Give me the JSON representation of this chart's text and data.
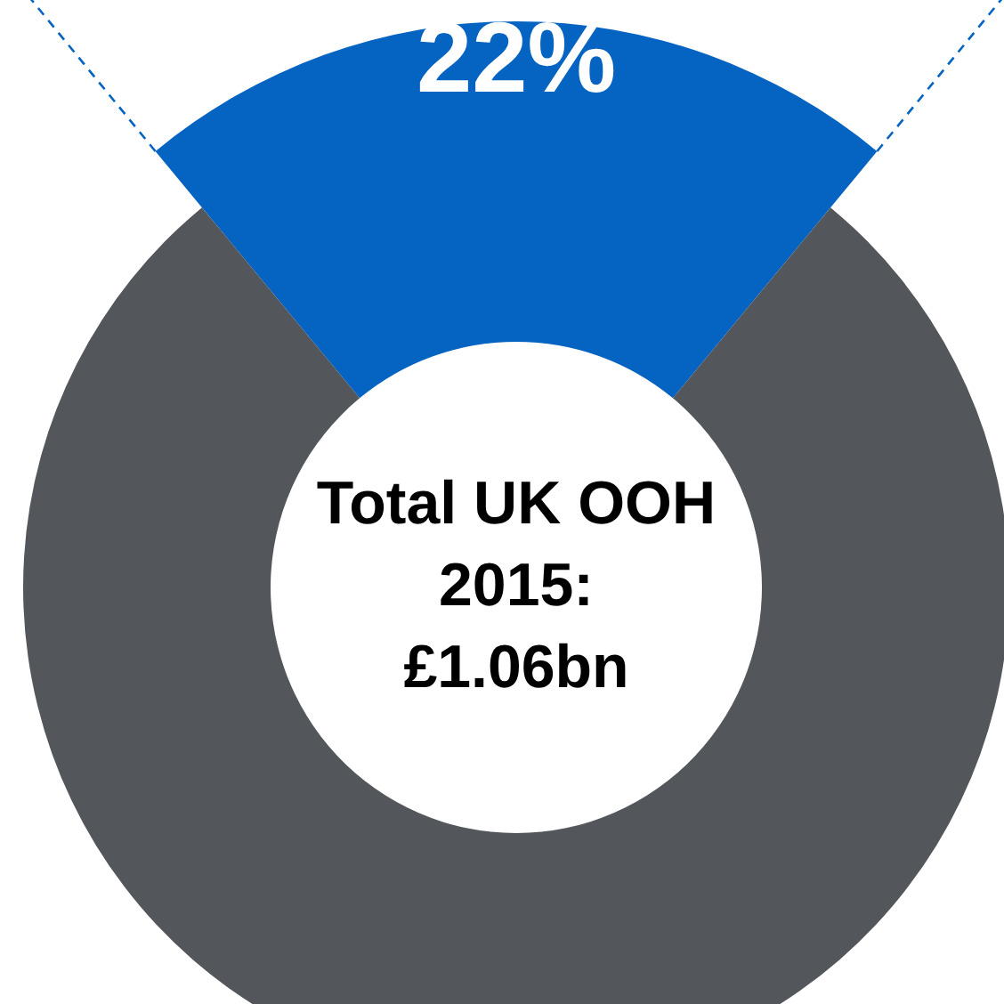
{
  "chart_data": {
    "type": "donut",
    "categories": [
      null,
      null
    ],
    "values": [
      22,
      78
    ],
    "colors": [
      "#0563c1",
      "#53575c"
    ],
    "value_labels": [
      "22%",
      null
    ],
    "annotations": [
      "Total UK OOH\n2015:\n£1.06bn"
    ]
  }
}
